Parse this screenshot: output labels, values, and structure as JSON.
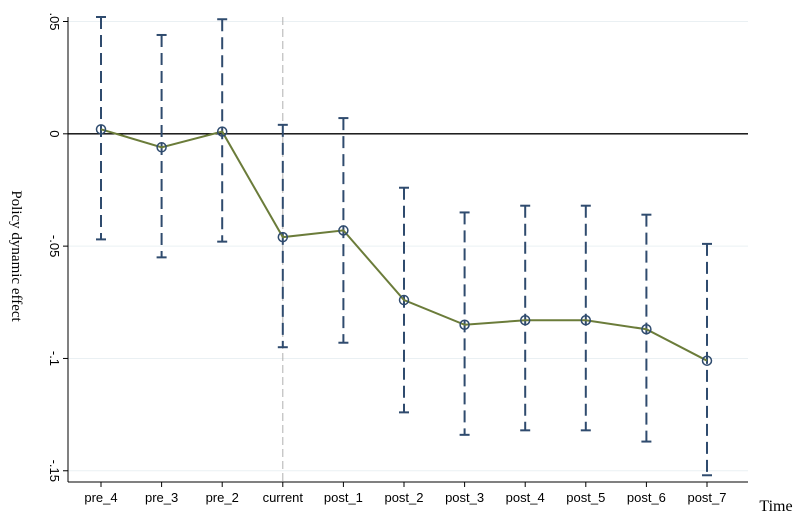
{
  "chart_data": {
    "type": "line",
    "title": "",
    "xlabel": "Time",
    "ylabel": "Policy dynamic effect",
    "categories": [
      "pre_4",
      "pre_3",
      "pre_2",
      "current",
      "post_1",
      "post_2",
      "post_3",
      "post_4",
      "post_5",
      "post_6",
      "post_7"
    ],
    "series": [
      {
        "values": [
          0.002,
          -0.006,
          0.001,
          -0.046,
          -0.043,
          -0.074,
          -0.085,
          -0.083,
          -0.083,
          -0.087,
          -0.101
        ],
        "ci_lower": [
          -0.047,
          -0.055,
          -0.048,
          -0.095,
          -0.093,
          -0.124,
          -0.134,
          -0.132,
          -0.132,
          -0.137,
          -0.152
        ],
        "ci_upper": [
          0.052,
          0.044,
          0.051,
          0.004,
          0.007,
          -0.024,
          -0.035,
          -0.032,
          -0.032,
          -0.036,
          -0.049
        ]
      }
    ],
    "yticks": [
      0.05,
      0,
      -0.05,
      -0.1,
      -0.15
    ],
    "ytick_labels": [
      ".05",
      "0",
      "-.05",
      "-.1",
      "-.15"
    ],
    "ylim": [
      -0.155,
      0.052
    ],
    "reference_line_y": 0,
    "event_line_category": "current",
    "grid": true,
    "colors": {
      "line": "#6b7c3a",
      "ci": "#2f4b6e",
      "marker": "#2f4b6e",
      "grid": "#eaf0f3",
      "event_line": "#b0b0b0",
      "reference": "#000000"
    }
  }
}
